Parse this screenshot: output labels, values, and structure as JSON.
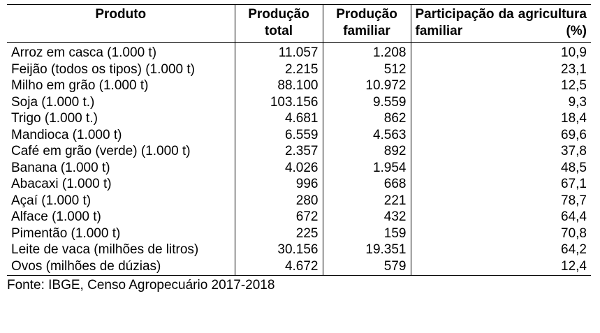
{
  "table": {
    "headers": {
      "produto": "Produto",
      "producao_total": "Produção total",
      "producao_familiar": "Produção familiar",
      "participacao": "Participação da agricultura familiar (%)"
    },
    "rows": [
      {
        "produto": "Arroz em casca (1.000 t)",
        "total": "11.057",
        "familiar": "1.208",
        "participacao": "10,9"
      },
      {
        "produto": "Feijão (todos os tipos) (1.000 t)",
        "total": "2.215",
        "familiar": "512",
        "participacao": "23,1"
      },
      {
        "produto": "Milho em grão (1.000 t)",
        "total": "88.100",
        "familiar": "10.972",
        "participacao": "12,5"
      },
      {
        "produto": "Soja (1.000 t.)",
        "total": "103.156",
        "familiar": "9.559",
        "participacao": "9,3"
      },
      {
        "produto": "Trigo (1.000 t.)",
        "total": "4.681",
        "familiar": "862",
        "participacao": "18,4"
      },
      {
        "produto": "Mandioca (1.000 t)",
        "total": "6.559",
        "familiar": "4.563",
        "participacao": "69,6"
      },
      {
        "produto": "Café em grão (verde) (1.000 t)",
        "total": "2.357",
        "familiar": "892",
        "participacao": "37,8"
      },
      {
        "produto": "Banana (1.000 t)",
        "total": "4.026",
        "familiar": "1.954",
        "participacao": "48,5"
      },
      {
        "produto": "Abacaxi (1.000 t)",
        "total": "996",
        "familiar": "668",
        "participacao": "67,1"
      },
      {
        "produto": "Açaí (1.000 t)",
        "total": "280",
        "familiar": "221",
        "participacao": "78,7"
      },
      {
        "produto": "Alface (1.000 t)",
        "total": "672",
        "familiar": "432",
        "participacao": "64,4"
      },
      {
        "produto": "Pimentão (1.000 t)",
        "total": "225",
        "familiar": "159",
        "participacao": "70,8"
      },
      {
        "produto": "Leite de vaca (milhões de litros)",
        "total": "30.156",
        "familiar": "19.351",
        "participacao": "64,2"
      },
      {
        "produto": "Ovos (milhões de dúzias)",
        "total": "4.672",
        "familiar": "579",
        "participacao": "12,4"
      }
    ]
  },
  "source": "Fonte: IBGE, Censo Agropecuário 2017-2018"
}
